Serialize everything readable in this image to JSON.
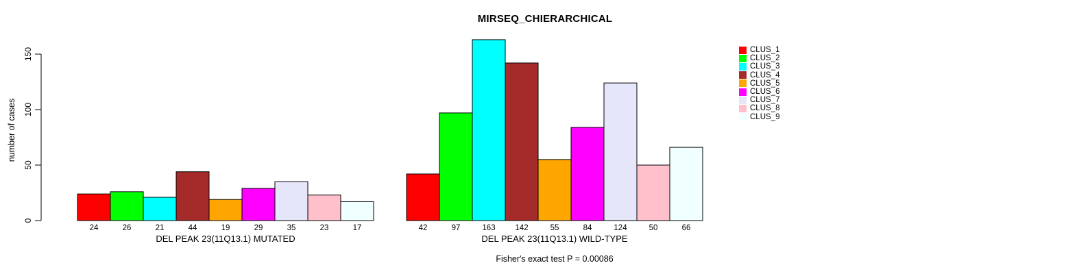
{
  "figure": {
    "background": "#FFFFFF",
    "axis_color": "#000000"
  },
  "chart_data": {
    "type": "bar",
    "title": "MIRSEQ_CHIERARCHICAL",
    "ylabel": "number of cases",
    "xlabel": "",
    "ylim": [
      0,
      163
    ],
    "yticks": [
      0,
      50,
      100,
      150
    ],
    "grid": false,
    "legend_position": "right",
    "bar_outline_color": "#000000",
    "categories": [
      "CLUS_1",
      "CLUS_2",
      "CLUS_3",
      "CLUS_4",
      "CLUS_5",
      "CLUS_6",
      "CLUS_7",
      "CLUS_8",
      "CLUS_9"
    ],
    "colors": [
      "#FF0000",
      "#00FF00",
      "#00FFFF",
      "#A52A2A",
      "#FFA500",
      "#FF00FF",
      "#E6E6FA",
      "#FFC0CB",
      "#F0FFFF"
    ],
    "groups": [
      {
        "label": "DEL PEAK 23(11Q13.1) MUTATED",
        "values": [
          24,
          26,
          21,
          44,
          19,
          29,
          35,
          23,
          17
        ]
      },
      {
        "label": "DEL PEAK 23(11Q13.1) WILD-TYPE",
        "values": [
          42,
          97,
          163,
          142,
          55,
          84,
          124,
          50,
          66
        ]
      }
    ],
    "annotation": "Fisher's exact test P = 0.00086"
  }
}
